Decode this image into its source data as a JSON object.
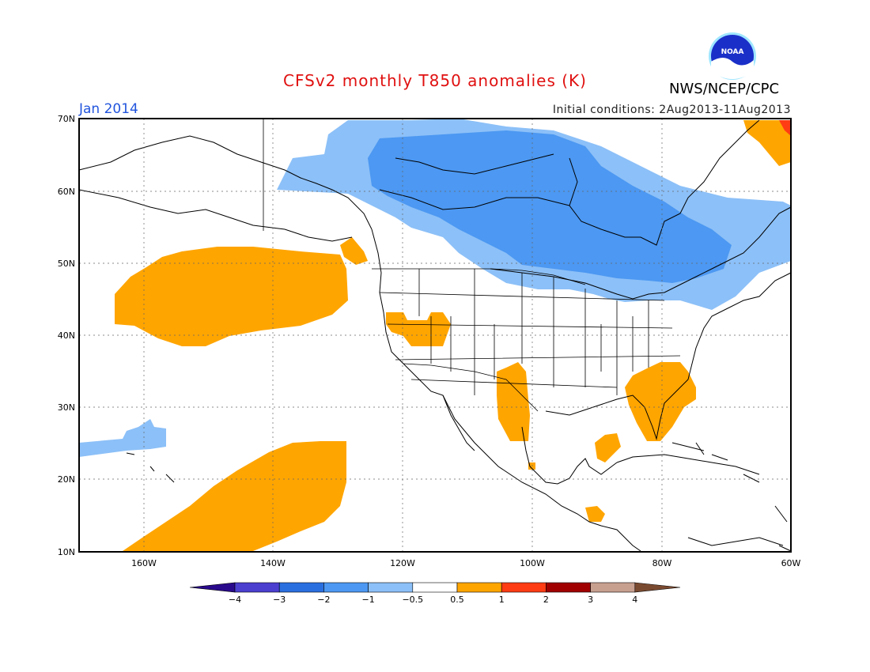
{
  "header": {
    "title": "CFSv2 monthly T850 anomalies (K)",
    "month": "Jan 2014",
    "initial_conditions": "Initial conditions: 2Aug2013-11Aug2013",
    "agency": "NWS/NCEP/CPC",
    "logo_text": "NOAA"
  },
  "map": {
    "lat_labels": [
      "70N",
      "60N",
      "50N",
      "40N",
      "30N",
      "20N",
      "10N"
    ],
    "lon_labels": [
      "160W",
      "140W",
      "120W",
      "100W",
      "80W",
      "60W"
    ],
    "lon_range": [
      -170,
      -60
    ],
    "lat_range": [
      10,
      70
    ]
  },
  "colorbar": {
    "labels": [
      "−4",
      "−3",
      "−2",
      "−1",
      "−0.5",
      "0.5",
      "1",
      "2",
      "3",
      "4"
    ],
    "colors": [
      "#2a0a8c",
      "#4b3fd0",
      "#2a6fe0",
      "#4c98f2",
      "#8cc0f8",
      "#ffffff",
      "#ffa500",
      "#ff3c14",
      "#a00000",
      "#c8a090",
      "#7a4a30"
    ]
  }
}
